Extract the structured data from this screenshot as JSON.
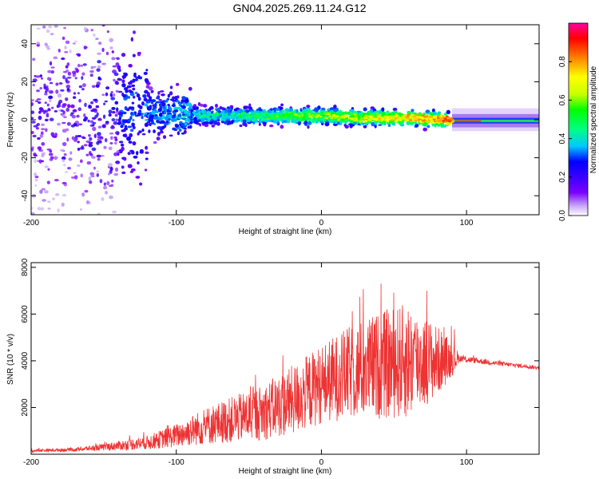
{
  "title": "GN04.2025.269.11.24.G12",
  "chart_data": [
    {
      "type": "heatmap",
      "name": "spectrogram",
      "xlabel": "Height of straight line (km)",
      "ylabel": "Frequency (Hz)",
      "xlim": [
        -200,
        150
      ],
      "ylim": [
        -50,
        50
      ],
      "x_ticks": [
        -200,
        -100,
        0,
        100
      ],
      "y_ticks": [
        -40,
        -20,
        0,
        20,
        40
      ],
      "colorbar": {
        "label": "Normalized spectral amplitude",
        "range": [
          0,
          1
        ],
        "ticks": [
          0.0,
          0.2,
          0.4,
          0.6,
          0.8
        ],
        "tick_labels": [
          "0.0",
          "0.2",
          "0.4",
          "0.6",
          "0.8"
        ],
        "colors": [
          "#ffffff",
          "#c8a8f8",
          "#7a00ff",
          "#3a00ff",
          "#0000ff",
          "#00c8ff",
          "#00ff80",
          "#00ff00",
          "#c8ff00",
          "#ffff00",
          "#ff8000",
          "#ff0000",
          "#ff00a0"
        ]
      },
      "ridge": [
        {
          "x": -200,
          "y": 5
        },
        {
          "x": -150,
          "y": 5
        },
        {
          "x": -120,
          "y": 4
        },
        {
          "x": -100,
          "y": 3
        },
        {
          "x": -80,
          "y": 2
        },
        {
          "x": -50,
          "y": 2
        },
        {
          "x": -20,
          "y": 2
        },
        {
          "x": 0,
          "y": 2
        },
        {
          "x": 30,
          "y": 1
        },
        {
          "x": 60,
          "y": 1
        },
        {
          "x": 85,
          "y": 0
        },
        {
          "x": 100,
          "y": -1
        },
        {
          "x": 150,
          "y": -1
        }
      ]
    },
    {
      "type": "line",
      "name": "snr",
      "xlabel": "Height of straight line (km)",
      "ylabel": "SNR (10 * v/v)",
      "xlim": [
        -200,
        150
      ],
      "ylim": [
        0,
        8200
      ],
      "x_ticks": [
        -200,
        -100,
        0,
        100
      ],
      "y_ticks": [
        2000,
        4000,
        6000,
        8000
      ],
      "color": "#ee3333",
      "envelope": [
        {
          "x": -200,
          "base": 150,
          "amp": 60
        },
        {
          "x": -170,
          "base": 200,
          "amp": 80
        },
        {
          "x": -150,
          "base": 300,
          "amp": 150
        },
        {
          "x": -120,
          "base": 500,
          "amp": 300
        },
        {
          "x": -100,
          "base": 800,
          "amp": 500
        },
        {
          "x": -80,
          "base": 1200,
          "amp": 800
        },
        {
          "x": -60,
          "base": 1500,
          "amp": 1000
        },
        {
          "x": -40,
          "base": 1800,
          "amp": 1200
        },
        {
          "x": -20,
          "base": 2300,
          "amp": 1500
        },
        {
          "x": 0,
          "base": 3000,
          "amp": 1700
        },
        {
          "x": 20,
          "base": 3500,
          "amp": 2000
        },
        {
          "x": 40,
          "base": 3800,
          "amp": 2300
        },
        {
          "x": 60,
          "base": 4000,
          "amp": 2500
        },
        {
          "x": 80,
          "base": 4000,
          "amp": 1500
        },
        {
          "x": 92,
          "base": 4100,
          "amp": 600
        },
        {
          "x": 95,
          "base": 4100,
          "amp": 150
        },
        {
          "x": 120,
          "base": 3900,
          "amp": 100
        },
        {
          "x": 150,
          "base": 3700,
          "amp": 80
        }
      ]
    }
  ]
}
